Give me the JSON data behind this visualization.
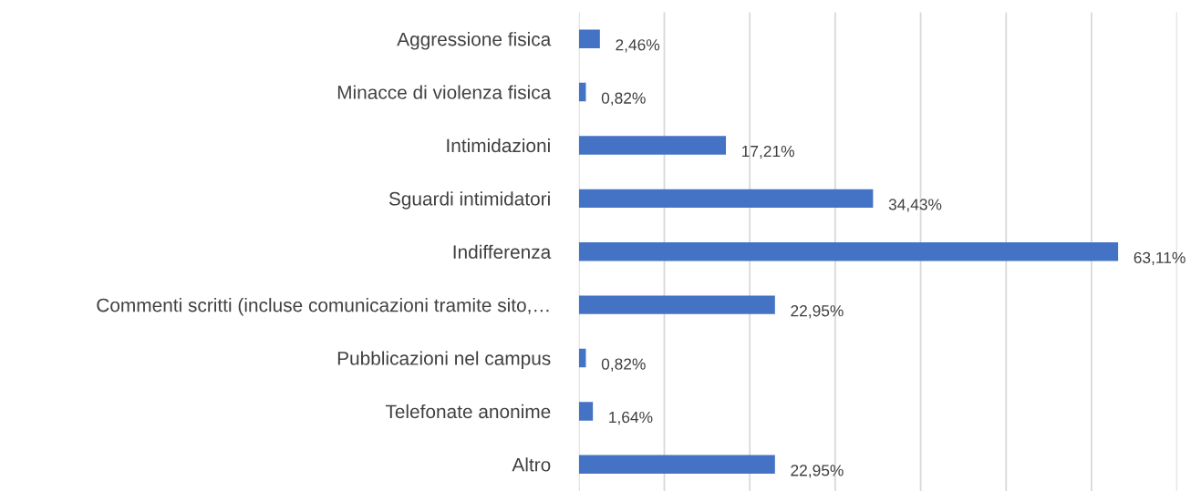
{
  "chart_data": {
    "type": "bar",
    "orientation": "horizontal",
    "categories": [
      "Aggressione fisica",
      "Minacce di violenza fisica",
      "Intimidazioni",
      "Sguardi intimidatori",
      "Indifferenza",
      "Commenti scritti (incluse comunicazioni tramite sito,…",
      "Pubblicazioni nel campus",
      "Telefonate anonime",
      "Altro"
    ],
    "values": [
      2.46,
      0.82,
      17.21,
      34.43,
      63.11,
      22.95,
      0.82,
      1.64,
      22.95
    ],
    "value_labels": [
      "2,46%",
      "0,82%",
      "17,21%",
      "34,43%",
      "63,11%",
      "22,95%",
      "0,82%",
      "1,64%",
      "22,95%"
    ],
    "color": "#4472c4",
    "xlim": [
      0,
      70
    ],
    "xticks": [
      {
        "value": 0,
        "label": null
      },
      {
        "value": 10,
        "label": null
      },
      {
        "value": 20,
        "label": null
      },
      {
        "value": 30,
        "label": null
      },
      {
        "value": 40,
        "label": null
      },
      {
        "value": 50,
        "label": null
      },
      {
        "value": 60,
        "label": null
      },
      {
        "value": 70,
        "label": null
      }
    ],
    "tick_labels": "y",
    "grid": "x"
  }
}
